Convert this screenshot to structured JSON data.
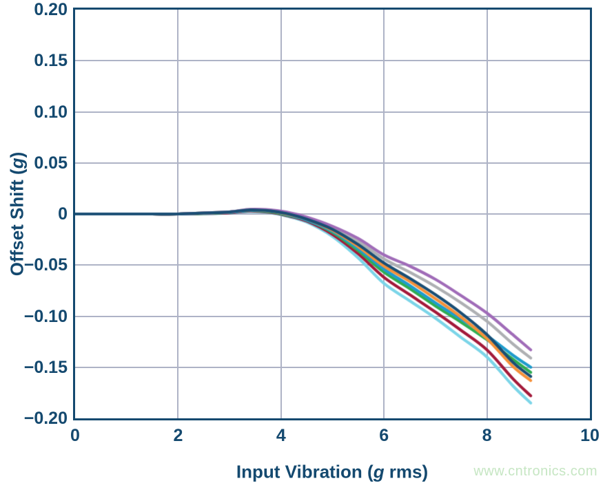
{
  "watermark": "www.cntronics.com",
  "colors": {
    "axis": "#14496f",
    "grid": "#aeb3c6",
    "tick_text": "#14496f",
    "watermark_text": "#c6e6c3"
  },
  "chart_data": {
    "type": "line",
    "title": "",
    "xlabel": {
      "pre": "Input Vibration (",
      "italic": "g",
      "post": " rms)"
    },
    "ylabel": {
      "pre": "Offset Shift (",
      "italic": "g",
      "post": ")"
    },
    "xlim": [
      0,
      10
    ],
    "ylim": [
      -0.2,
      0.2
    ],
    "grid": true,
    "legend": "none",
    "x_ticks": [
      0,
      2,
      4,
      6,
      8,
      10
    ],
    "x_tick_labels": [
      "0",
      "2",
      "4",
      "6",
      "8",
      "10"
    ],
    "y_ticks": [
      0.2,
      0.15,
      0.1,
      0.05,
      0,
      -0.05,
      -0.1,
      -0.15,
      -0.2
    ],
    "y_tick_labels": [
      "0.20",
      "0.15",
      "0.10",
      "0.05",
      "0",
      "−0.05",
      "−0.10",
      "−0.15",
      "−0.20"
    ],
    "x_grid": [
      2,
      4,
      6,
      8
    ],
    "y_grid": [
      0.15,
      0.1,
      0.05,
      0,
      -0.05,
      -0.1,
      -0.15
    ],
    "x": [
      0,
      0.5,
      1,
      1.5,
      2,
      2.5,
      3,
      3.4,
      3.8,
      4.1,
      4.5,
      5,
      5.5,
      6,
      6.5,
      7,
      7.5,
      8,
      8.5,
      8.85
    ],
    "series": [
      {
        "name": "unit-light-cyan",
        "color": "#7cd5e8",
        "values": [
          0,
          0,
          0,
          0,
          0,
          0,
          0.001,
          0.0025,
          0.001,
          -0.002,
          -0.008,
          -0.022,
          -0.043,
          -0.068,
          -0.085,
          -0.102,
          -0.121,
          -0.14,
          -0.168,
          -0.185
        ]
      },
      {
        "name": "unit-crimson",
        "color": "#a31a3b",
        "values": [
          0,
          0,
          0,
          0,
          0,
          0.0005,
          0.001,
          0.003,
          0.0015,
          -0.0015,
          -0.007,
          -0.02,
          -0.039,
          -0.062,
          -0.079,
          -0.096,
          -0.114,
          -0.133,
          -0.161,
          -0.178
        ]
      },
      {
        "name": "unit-green",
        "color": "#2fad52",
        "values": [
          0,
          0,
          0,
          0,
          0,
          0.0005,
          0.0015,
          0.0035,
          0.002,
          -0.001,
          -0.006,
          -0.018,
          -0.036,
          -0.057,
          -0.073,
          -0.09,
          -0.106,
          -0.123,
          -0.142,
          -0.155
        ]
      },
      {
        "name": "unit-blue",
        "color": "#1f9ccc",
        "values": [
          0,
          0,
          0,
          0,
          0,
          0.001,
          0.0015,
          0.0035,
          0.0025,
          -0.0005,
          -0.006,
          -0.017,
          -0.034,
          -0.054,
          -0.07,
          -0.087,
          -0.103,
          -0.119,
          -0.138,
          -0.15
        ]
      },
      {
        "name": "unit-orange",
        "color": "#f5913a",
        "values": [
          0,
          0,
          0,
          0,
          0,
          0.001,
          0.002,
          0.004,
          0.003,
          0,
          -0.005,
          -0.016,
          -0.032,
          -0.051,
          -0.066,
          -0.083,
          -0.101,
          -0.122,
          -0.149,
          -0.163
        ]
      },
      {
        "name": "unit-gray",
        "color": "#aeb0b3",
        "values": [
          0,
          0,
          0,
          0,
          0,
          0.001,
          0.002,
          0.0045,
          0.0035,
          0.001,
          -0.004,
          -0.014,
          -0.027,
          -0.044,
          -0.057,
          -0.071,
          -0.087,
          -0.105,
          -0.127,
          -0.141
        ]
      },
      {
        "name": "unit-purple",
        "color": "#a06cb8",
        "values": [
          0,
          0,
          0,
          0,
          0,
          0.001,
          0.002,
          0.0045,
          0.004,
          0.002,
          -0.003,
          -0.012,
          -0.024,
          -0.04,
          -0.051,
          -0.064,
          -0.08,
          -0.097,
          -0.118,
          -0.133
        ]
      },
      {
        "name": "unit-navy",
        "color": "#1a4e74",
        "values": [
          0,
          0,
          0,
          0,
          0,
          0.001,
          0.002,
          0.004,
          0.003,
          0.0005,
          -0.005,
          -0.015,
          -0.03,
          -0.048,
          -0.063,
          -0.079,
          -0.097,
          -0.118,
          -0.145,
          -0.159
        ]
      }
    ]
  }
}
